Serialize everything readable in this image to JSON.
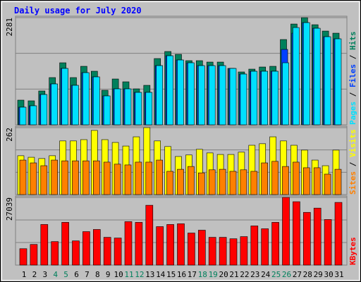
{
  "chart_data": [
    {
      "type": "bar",
      "title": "Daily usage for July 2020",
      "legend_separator": " / ",
      "ylim": [
        0,
        2281
      ],
      "yticks": [
        2281
      ],
      "series": [
        {
          "name": "Hits",
          "color": "#00805c",
          "values": [
            525,
            510,
            720,
            1005,
            1320,
            1005,
            1245,
            1140,
            735,
            975,
            915,
            765,
            840,
            1410,
            1560,
            1500,
            1365,
            1365,
            1335,
            1335,
            1200,
            1125,
            1185,
            1230,
            1245,
            1815,
            2145,
            2281,
            2130,
            1995,
            1950
          ]
        },
        {
          "name": "Files",
          "color": "#0040ff",
          "values": [
            375,
            405,
            645,
            870,
            1200,
            840,
            1110,
            1020,
            615,
            765,
            765,
            690,
            690,
            1260,
            1470,
            1380,
            1320,
            1260,
            1260,
            1260,
            1200,
            1080,
            1140,
            1140,
            1140,
            1605,
            1950,
            2175,
            2055,
            1875,
            1830
          ]
        },
        {
          "name": "Pages",
          "color": "#00e0ff",
          "values": [
            375,
            405,
            645,
            870,
            1200,
            840,
            1110,
            1020,
            615,
            765,
            765,
            690,
            690,
            1260,
            1470,
            1380,
            1320,
            1260,
            1260,
            1260,
            1200,
            1080,
            1140,
            1140,
            1140,
            1320,
            2070,
            2175,
            2055,
            1875,
            1830
          ]
        }
      ]
    },
    {
      "type": "bar",
      "legend_separator": " / ",
      "ylim": [
        0,
        262
      ],
      "yticks": [
        262
      ],
      "series": [
        {
          "name": "Visits",
          "color": "#ffff00",
          "values": [
            152,
            146,
            141,
            152,
            210,
            210,
            215,
            251,
            215,
            204,
            190,
            226,
            262,
            210,
            188,
            149,
            155,
            177,
            163,
            157,
            157,
            166,
            193,
            199,
            226,
            210,
            193,
            174,
            135,
            113,
            174
          ]
        },
        {
          "name": "Sites",
          "color": "#ff8000",
          "values": [
            135,
            124,
            113,
            135,
            132,
            132,
            132,
            132,
            127,
            119,
            116,
            127,
            127,
            135,
            91,
            99,
            110,
            85,
            97,
            99,
            91,
            97,
            91,
            124,
            130,
            110,
            127,
            105,
            105,
            80,
            99
          ]
        }
      ]
    },
    {
      "type": "bar",
      "ylim": [
        0,
        27039
      ],
      "yticks": [
        27039
      ],
      "categories": [
        "1",
        "2",
        "3",
        "4",
        "5",
        "6",
        "7",
        "8",
        "9",
        "10",
        "11",
        "12",
        "13",
        "14",
        "15",
        "16",
        "17",
        "18",
        "19",
        "20",
        "21",
        "22",
        "23",
        "24",
        "25",
        "26",
        "27",
        "28",
        "29",
        "30",
        "31"
      ],
      "highlight_categories": [
        "4",
        "5",
        "11",
        "12",
        "18",
        "19",
        "25",
        "26"
      ],
      "highlight_color": "#00805c",
      "series": [
        {
          "name": "KBytes",
          "color": "#ff0000",
          "values": [
            6546,
            8253,
            16222,
            9391,
            17076,
            9676,
            13376,
            14230,
            11099,
            10815,
            17361,
            17076,
            23906,
            15368,
            16222,
            16507,
            12807,
            13945,
            11099,
            11099,
            10530,
            11384,
            15653,
            14515,
            17076,
            27039,
            25329,
            21060,
            22768,
            18214,
            25044
          ]
        }
      ]
    }
  ]
}
